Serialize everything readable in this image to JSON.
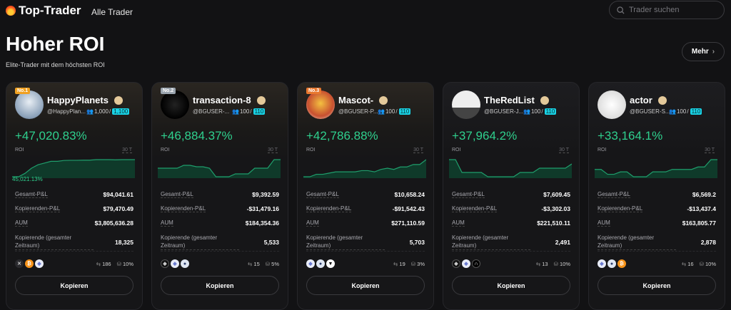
{
  "header": {
    "brand": "Top-Trader",
    "nav_all": "Alle Trader",
    "search_placeholder": "Trader suchen"
  },
  "section": {
    "title": "Hoher ROI",
    "subtitle": "Elite-Trader mit dem höchsten ROI",
    "more_label": "Mehr"
  },
  "labels": {
    "roi": "ROI",
    "period": "30 T",
    "total_pnl": "Gesamt-P&L",
    "copier_pnl": "Kopierenden-P&L",
    "aum": "AUM",
    "copiers_total": "Kopierende (gesamter Zeitraum)",
    "copy_button": "Kopieren"
  },
  "colors": {
    "accent_green": "#2fd08e",
    "capacity_badge": "#19d3e6",
    "rank1": "#f0a020",
    "rank2": "#9aa4ae",
    "rank3": "#e8772e"
  },
  "traders": [
    {
      "rank": "No.1",
      "name": "HappyPlanets",
      "handle": "@HappyPlan...",
      "copiers": "1,000",
      "max_copiers": "1,100",
      "roi": "+47,020.83%",
      "roi_min_label": "45,021.13%",
      "total_pnl": "$94,041.61",
      "copier_pnl": "$79,470.49",
      "aum": "$3,805,636.28",
      "copiers_total": "18,325",
      "trades": "186",
      "profit_share": "10%",
      "coins": [
        "x-coin",
        "bitcoin",
        "ethereum"
      ],
      "sparkline": [
        0,
        0,
        2,
        5,
        7,
        8,
        9,
        9,
        9.5,
        9.6,
        9.6,
        9.7,
        9.7,
        10,
        10,
        10,
        9.9,
        10,
        10,
        10
      ]
    },
    {
      "rank": "No.2",
      "name": "transaction-8",
      "handle": "@BGUSER-...",
      "copiers": "100",
      "max_copiers": "110",
      "roi": "+46,884.37%",
      "total_pnl": "$9,392.59",
      "copier_pnl": "-$31,479.16",
      "aum": "$184,354.36",
      "copiers_total": "5,533",
      "trades": "15",
      "profit_share": "5%",
      "coins": [
        "ethereum-dark",
        "ethereum",
        "coin-blue"
      ],
      "sparkline": [
        6,
        6,
        6,
        6,
        7,
        7,
        6.5,
        6.5,
        6,
        3,
        3,
        3,
        4,
        4,
        4,
        6,
        6,
        6,
        9,
        9
      ]
    },
    {
      "rank": "No.3",
      "name": "Mascot-",
      "handle": "@BGUSER-P...",
      "copiers": "100",
      "max_copiers": "110",
      "roi": "+42,786.88%",
      "total_pnl": "$10,658.24",
      "copier_pnl": "-$91,542.43",
      "aum": "$271,110.59",
      "copiers_total": "5,703",
      "trades": "19",
      "profit_share": "3%",
      "coins": [
        "ethereum",
        "coin-blue",
        "triangle-coin"
      ],
      "sparkline": [
        3,
        3,
        4,
        4,
        4.5,
        5,
        5,
        5,
        5,
        5.5,
        5.5,
        5,
        6,
        6.5,
        6,
        7,
        7,
        8,
        8,
        10
      ]
    },
    {
      "rank": "",
      "name": "TheRedList",
      "handle": "@BGUSER-J...",
      "copiers": "100",
      "max_copiers": "110",
      "roi": "+37,964.2%",
      "total_pnl": "$7,609.45",
      "copier_pnl": "-$3,302.03",
      "aum": "$221,510.11",
      "copiers_total": "2,491",
      "trades": "13",
      "profit_share": "10%",
      "coins": [
        "ethereum-dark",
        "ethereum",
        "arch-coin"
      ],
      "sparkline": [
        8,
        8,
        5,
        5,
        5,
        5,
        4,
        4,
        4,
        4,
        4,
        5,
        5,
        5,
        6,
        6,
        6,
        6,
        6,
        7
      ]
    },
    {
      "rank": "",
      "name": "actor",
      "handle": "@BGUSER-S...",
      "copiers": "100",
      "max_copiers": "110",
      "roi": "+33,164.1%",
      "total_pnl": "$6,569.2",
      "copier_pnl": "-$13,437.4",
      "aum": "$163,805.77",
      "copiers_total": "2,878",
      "trades": "16",
      "profit_share": "10%",
      "coins": [
        "ethereum",
        "coin-blue",
        "bitcoin"
      ],
      "sparkline": [
        5,
        5,
        3,
        3,
        4,
        4,
        2,
        2,
        2,
        4,
        4,
        4,
        5,
        5,
        5,
        5,
        6,
        6,
        9,
        9
      ]
    }
  ]
}
